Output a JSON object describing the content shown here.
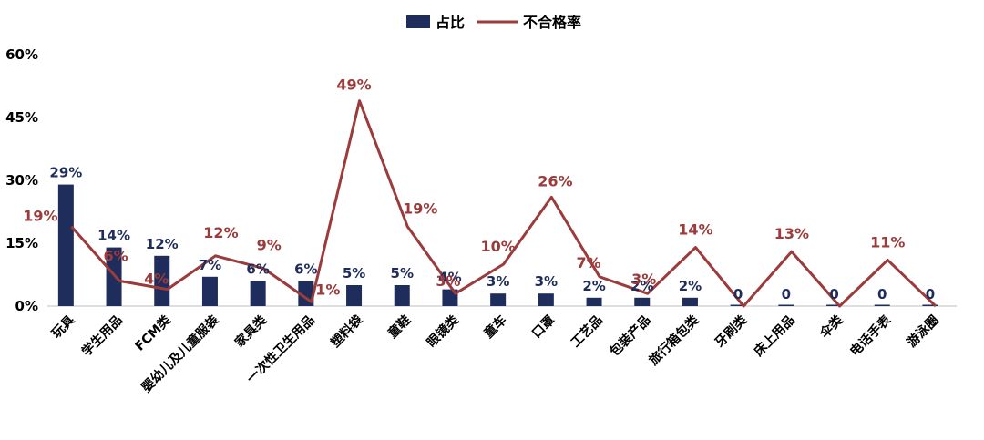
{
  "chart_data": {
    "type": "bar+line",
    "title": "",
    "xlabel": "",
    "ylabel": "",
    "ylim": [
      0,
      60
    ],
    "yticks": [
      "0%",
      "15%",
      "30%",
      "45%",
      "60%"
    ],
    "legend_position": "top-center",
    "grid": false,
    "categories": [
      "玩具",
      "学生用品",
      "FCM类",
      "婴幼儿及儿童服装",
      "家具类",
      "一次性卫生用品",
      "塑料袋",
      "童鞋",
      "眼镜类",
      "童车",
      "口罩",
      "工艺品",
      "包装产品",
      "旅行箱包类",
      "牙刷类",
      "床上用品",
      "伞类",
      "电话手表",
      "游泳圈"
    ],
    "series": [
      {
        "name": "占比",
        "type": "bar",
        "color": "#1f2d5c",
        "values": [
          29,
          14,
          12,
          7,
          6,
          6,
          5,
          5,
          4,
          3,
          3,
          2,
          2,
          2,
          0,
          0,
          0,
          0,
          0
        ],
        "labels": [
          "29%",
          "14%",
          "12%",
          "7%",
          "6%",
          "6%",
          "5%",
          "5%",
          "4%",
          "3%",
          "3%",
          "2%",
          "2%",
          "2%",
          "0",
          "0",
          "0",
          "0",
          "0"
        ]
      },
      {
        "name": "不合格率",
        "type": "line",
        "color": "#9b3b3b",
        "values": [
          19,
          6,
          4,
          12,
          9,
          1,
          49,
          19,
          3,
          10,
          26,
          7,
          3,
          14,
          0,
          13,
          0,
          11,
          0
        ],
        "labels": [
          "19%",
          "6%",
          "4%",
          "12%",
          "9%",
          "1%",
          "49%",
          "19%",
          "3%",
          "10%",
          "26%",
          "7%",
          "3%",
          "14%",
          "",
          "13%",
          "",
          "11%",
          ""
        ]
      }
    ]
  }
}
